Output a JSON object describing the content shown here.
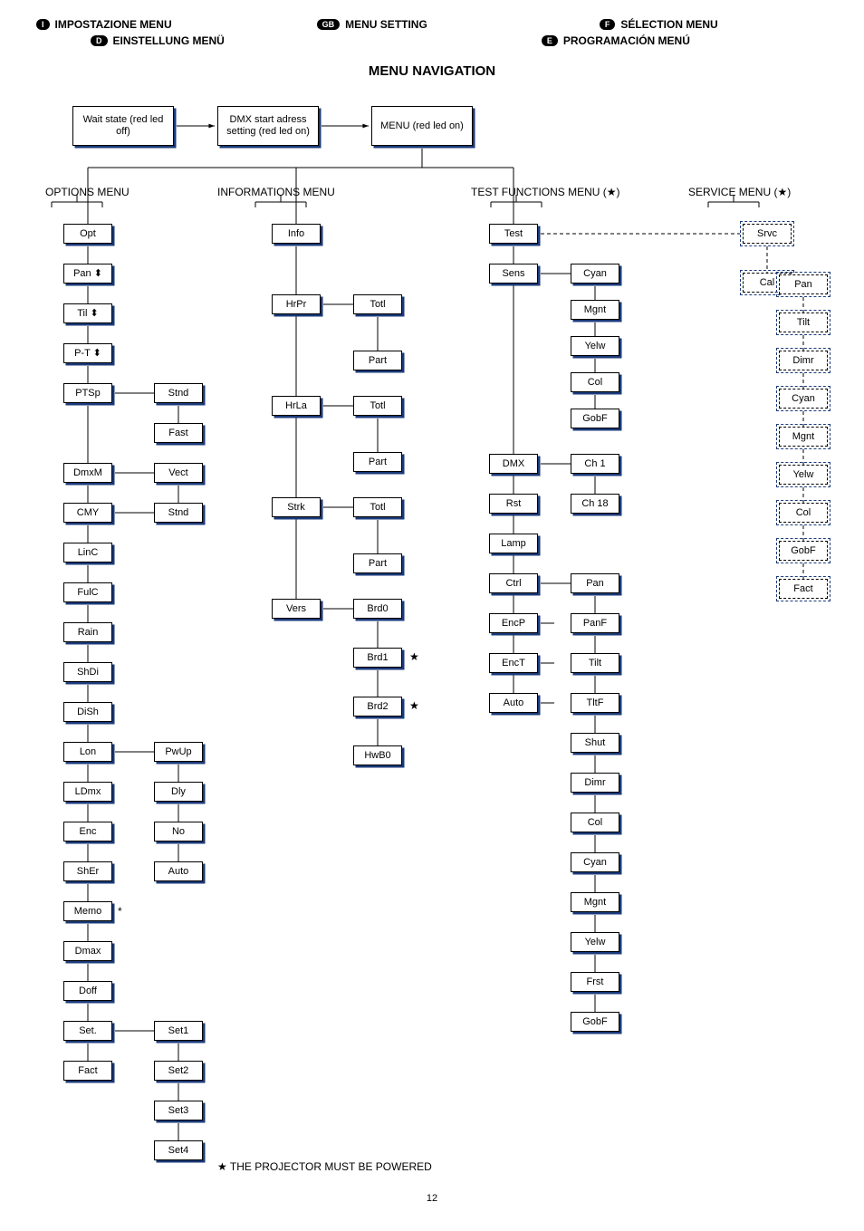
{
  "header": {
    "row1": [
      {
        "badge": "I",
        "text": "IMPOSTAZIONE MENU"
      },
      {
        "badge": "GB",
        "text": "MENU SETTING"
      },
      {
        "badge": "F",
        "text": "SÉLECTION MENU"
      }
    ],
    "row2": [
      {
        "badge": "D",
        "text": "EINSTELLUNG MENÜ"
      },
      {
        "badge": "E",
        "text": "PROGRAMACIÓN MENÚ"
      }
    ],
    "badge_bg": "#000000",
    "badge_fg": "#ffffff"
  },
  "title": "MENU NAVIGATION",
  "section_labels": {
    "options": "OPTIONS MENU",
    "info": "INFORMATIONS MENU",
    "test": "TEST FUNCTIONS MENU (★)",
    "service": "SERVICE MENU (★)"
  },
  "top_row": {
    "wait": "Wait state\n(red led off)",
    "dmx": "DMX start\nadress setting\n(red led on)",
    "menu": "MENU\n(red led on)"
  },
  "options_col": [
    "Opt",
    "Pan  ⬍",
    "Til  ⬍",
    "P-T  ⬍",
    "PTSp",
    "",
    "DmxM",
    "CMY",
    "LinC",
    "FulC",
    "Rain",
    "ShDi",
    "DiSh",
    "Lon",
    "LDmx",
    "Enc",
    "ShEr",
    "Memo",
    "Dmax",
    "Doff",
    "Set.",
    "Fact"
  ],
  "options_sub": {
    "ptsp": [
      "Stnd",
      "Fast"
    ],
    "dmxm_cmy": [
      "Vect",
      "Stnd"
    ],
    "lon": [
      "PwUp",
      "Dly",
      "No",
      "Auto"
    ],
    "set": [
      "Set1",
      "Set2",
      "Set3",
      "Set4"
    ]
  },
  "memo_star": "*",
  "info_col": {
    "root": "Info",
    "hrpr": "HrPr",
    "hrpr_sub": [
      "Totl",
      "Part"
    ],
    "hrla": "HrLa",
    "hrla_sub": [
      "Totl",
      "Part"
    ],
    "strk": "Strk",
    "strk_sub": [
      "Totl",
      "Part"
    ],
    "vers": "Vers",
    "vers_sub": [
      "Brd0",
      "Brd1",
      "Brd2",
      "HwB0"
    ],
    "vers_stars": [
      "",
      "★",
      "★",
      ""
    ]
  },
  "test_col": {
    "root": "Test",
    "sens": "Sens",
    "sens_sub": [
      "Cyan",
      "Mgnt",
      "Yelw",
      "Col",
      "GobF"
    ],
    "dmx": "DMX",
    "dmx_sub": [
      "Ch 1",
      "Ch 18"
    ],
    "rst": "Rst",
    "lamp": "Lamp",
    "ctrl": "Ctrl",
    "ctrl_sub": [
      "Pan",
      "PanF",
      "Tilt",
      "TltF",
      "Shut",
      "Dimr",
      "Col",
      "Cyan",
      "Mgnt",
      "Yelw",
      "Frst",
      "GobF"
    ],
    "encp": "EncP",
    "enct": "EncT",
    "auto": "Auto"
  },
  "service_col": {
    "root": "Srvc",
    "cal": "Cal",
    "cal_sub": [
      "Pan",
      "Tilt",
      "Dimr",
      "Cyan",
      "Mgnt",
      "Yelw",
      "Col",
      "GobF",
      "Fact"
    ]
  },
  "footnote": "★ THE PROJECTOR MUST BE POWERED",
  "page_number": "12",
  "colors": {
    "shadow": "#1a3a7a",
    "line": "#000000",
    "dash": "#000000"
  },
  "geometry": {
    "small_w": 54,
    "small_h": 22,
    "row_gap": 44,
    "top_big_w": 112,
    "top_big_h": 44
  }
}
